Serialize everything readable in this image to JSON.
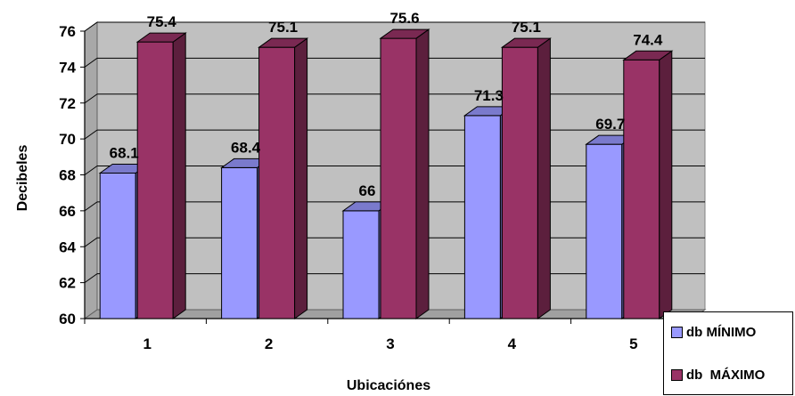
{
  "chart_data": {
    "type": "bar",
    "categories": [
      "1",
      "2",
      "3",
      "4",
      "5"
    ],
    "series": [
      {
        "name": "db MÍNIMO",
        "values": [
          68.1,
          68.4,
          66,
          71.3,
          69.7
        ],
        "color": "#9999FF"
      },
      {
        "name": "db  MÁXIMO",
        "values": [
          75.4,
          75.1,
          75.6,
          75.1,
          74.4
        ],
        "color": "#993366"
      }
    ],
    "data_labels": [
      [
        "68.1",
        "68.4",
        "66",
        "71.3",
        "69.7"
      ],
      [
        "75.4",
        "75.1",
        "75.6",
        "75.1",
        "74.4"
      ]
    ],
    "yticks": [
      "60",
      "62",
      "64",
      "66",
      "68",
      "70",
      "72",
      "74",
      "76"
    ],
    "ylim": [
      60,
      76
    ],
    "xlabel": "Ubicaciónes",
    "ylabel": "Decibeles",
    "grid": true,
    "three_d": true,
    "legend_position": "bottom-right",
    "plot_background": "#C0C0C0"
  }
}
